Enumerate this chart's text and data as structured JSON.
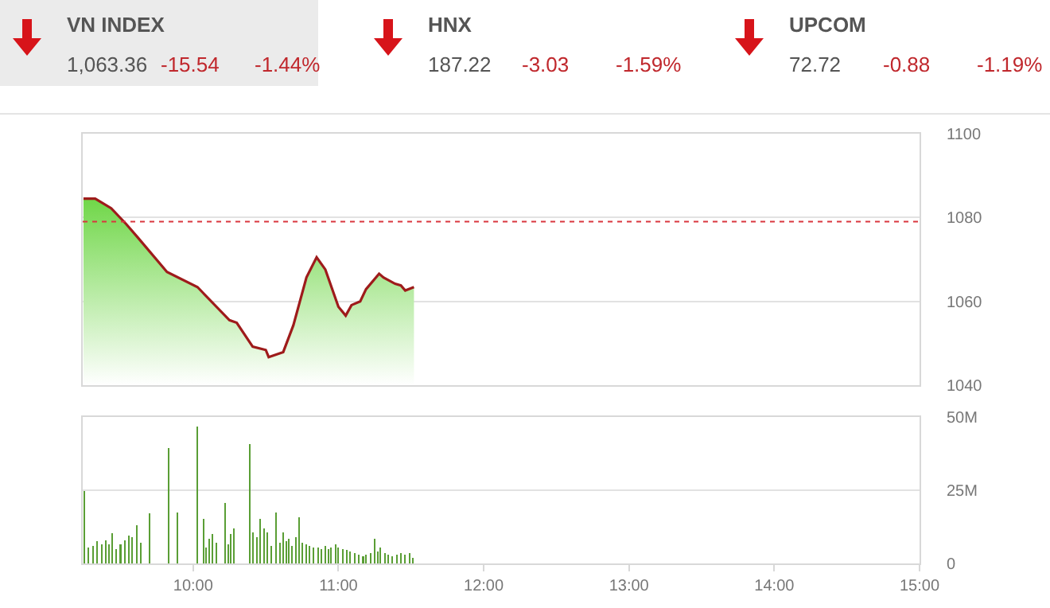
{
  "chart_data": [
    {
      "type": "other",
      "annotations": [
        "VN INDEX",
        "1,063.36",
        "-15.54",
        "-1.44%",
        "HNX",
        "187.22",
        "-3.03",
        "-1.59%",
        "UPCOM",
        "72.72",
        "-0.88",
        "-1.19%"
      ]
    },
    {
      "type": "area",
      "xlim": [
        9.24,
        15
      ],
      "ylim": [
        1040,
        1100
      ],
      "yticks": [
        1040,
        1060,
        1080,
        1100
      ],
      "grid": "y",
      "tick_labels": "y",
      "series": [
        {
          "color": "#9e1b1b",
          "x": [
            9.245,
            9.326,
            9.436,
            9.54,
            9.62,
            9.82,
            10.03,
            10.25,
            10.3,
            10.41,
            10.5,
            10.52,
            10.58,
            10.62,
            10.69,
            10.78,
            10.85,
            10.91,
            11.0,
            11.05,
            11.09,
            11.15,
            11.19,
            11.28,
            11.31,
            11.39,
            11.43,
            11.46,
            11.52
          ],
          "values": [
            1084.5,
            1084.5,
            1082.2,
            1078.4,
            1075.2,
            1067.0,
            1063.4,
            1055.5,
            1054.9,
            1049.2,
            1048.4,
            1046.7,
            1047.4,
            1047.9,
            1054.3,
            1065.7,
            1070.5,
            1067.6,
            1058.7,
            1056.6,
            1059.1,
            1060.0,
            1062.9,
            1066.6,
            1065.7,
            1064.2,
            1063.8,
            1062.6,
            1063.4
          ]
        }
      ],
      "ref_lines": [
        {
          "axis": "y",
          "value": 1079,
          "color": "#d9363e",
          "line_style": "dotted"
        }
      ]
    },
    {
      "type": "bar",
      "xlim": [
        9.24,
        15
      ],
      "xticks": [
        {
          "value": 10,
          "label": "10:00"
        },
        {
          "value": 11,
          "label": "11:00"
        },
        {
          "value": 12,
          "label": "12:00"
        },
        {
          "value": 13,
          "label": "13:00"
        },
        {
          "value": 14,
          "label": "14:00"
        },
        {
          "value": 15,
          "label": "15:00"
        }
      ],
      "ylim": [
        0,
        50
      ],
      "yticks": [
        0,
        {
          "value": 25,
          "label": "25M"
        },
        {
          "value": 50,
          "label": "50M"
        }
      ],
      "grid": "y",
      "series": [
        {
          "color": "#5a9e35",
          "x": [
            9.25,
            9.28,
            9.31,
            9.34,
            9.37,
            9.4,
            9.42,
            9.44,
            9.47,
            9.5,
            9.53,
            9.56,
            9.58,
            9.61,
            9.64,
            9.7,
            9.83,
            9.89,
            10.03,
            10.07,
            10.09,
            10.11,
            10.13,
            10.16,
            10.22,
            10.24,
            10.26,
            10.28,
            10.39,
            10.41,
            10.44,
            10.46,
            10.49,
            10.51,
            10.54,
            10.57,
            10.6,
            10.62,
            10.64,
            10.66,
            10.68,
            10.71,
            10.73,
            10.75,
            10.78,
            10.8,
            10.83,
            10.86,
            10.88,
            10.91,
            10.93,
            10.95,
            10.98,
            11.0,
            11.03,
            11.06,
            11.08,
            11.11,
            11.14,
            11.17,
            11.19,
            11.22,
            11.25,
            11.27,
            11.29,
            11.32,
            11.34,
            11.37,
            11.4,
            11.43,
            11.46,
            11.49,
            11.51
          ],
          "values": [
            24.7,
            5.5,
            6,
            7.5,
            6.5,
            8,
            6.5,
            10.3,
            5,
            6.5,
            8,
            9.5,
            9,
            13,
            7,
            17,
            39.4,
            17.5,
            46.7,
            15.3,
            5.5,
            8.5,
            10,
            7,
            20.6,
            6.5,
            10,
            11.9,
            40.8,
            10.5,
            9,
            15.3,
            12,
            10.5,
            6,
            17.5,
            7,
            10.5,
            7.5,
            8.5,
            6,
            9,
            15.8,
            7,
            6.5,
            6,
            5.5,
            5.5,
            5,
            6,
            5,
            5.5,
            6.5,
            5.5,
            5,
            4.5,
            4,
            3.5,
            3,
            2.5,
            3,
            3.5,
            8.3,
            4,
            5.5,
            3.5,
            3,
            2.5,
            3,
            3.5,
            3,
            3.5,
            2
          ]
        }
      ]
    }
  ]
}
